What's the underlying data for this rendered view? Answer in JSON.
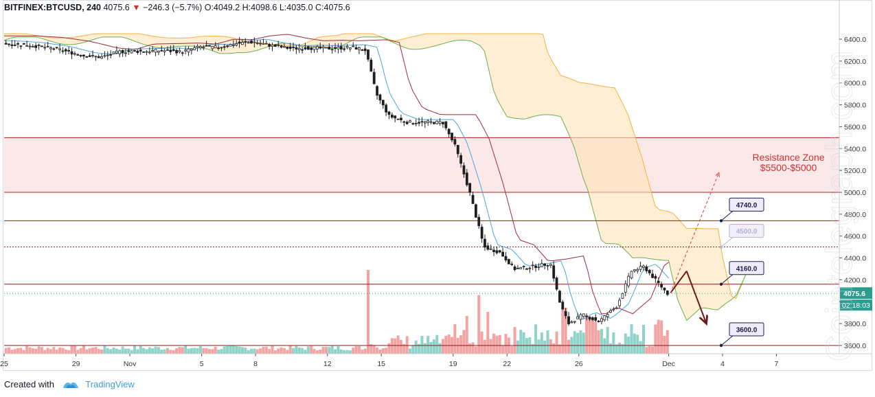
{
  "header": {
    "symbol": "BITFINEX:BTCUSD, 240",
    "last": "4075.6",
    "change": "−246.3 (−5.7%)",
    "open_label": "O:",
    "open": "4049.2",
    "high_label": "H:",
    "high": "4098.6",
    "low_label": "L:",
    "low": "4035.0",
    "close_label": "C:",
    "close": "4075.6"
  },
  "footer": {
    "created_with": "Created with",
    "brand": "TradingView"
  },
  "watermark": "Cointelegraph.com",
  "chart_data": {
    "type": "candlestick",
    "title": "BITFINEX:BTCUSD, 240",
    "ylim": [
      3500,
      6600
    ],
    "y_ticks": [
      3600,
      3800,
      4000,
      4200,
      4400,
      4600,
      4800,
      5000,
      5200,
      5400,
      5600,
      5800,
      6000,
      6200,
      6400
    ],
    "y_tick_labels": [
      "3600.0",
      "3800.0",
      "4000.0",
      "4200.0",
      "4400.0",
      "4600.0",
      "4800.0",
      "5000.0",
      "5200.0",
      "5400.0",
      "5600.0",
      "5800.0",
      "6000.0",
      "6200.0",
      "6400.0"
    ],
    "x_ticks": [
      {
        "label": "25",
        "day": 0
      },
      {
        "label": "29",
        "day": 4
      },
      {
        "label": "Nov",
        "day": 7
      },
      {
        "label": "5",
        "day": 11
      },
      {
        "label": "8",
        "day": 14
      },
      {
        "label": "12",
        "day": 18
      },
      {
        "label": "15",
        "day": 21
      },
      {
        "label": "19",
        "day": 25
      },
      {
        "label": "22",
        "day": 28
      },
      {
        "label": "26",
        "day": 32
      },
      {
        "label": "Dec",
        "day": 37
      },
      {
        "label": "4",
        "day": 40
      },
      {
        "label": "7",
        "day": 43
      }
    ],
    "x_range_days": [
      0,
      46.5
    ],
    "current_price": "4075.6",
    "countdown": "02:18:03",
    "resistance_zone": {
      "low": 5000,
      "high": 5500,
      "label_line1": "Resistance Zone",
      "label_line2": "$5500-$5000"
    },
    "levels": [
      {
        "value": 4740,
        "label": "4740.0",
        "style": "solid"
      },
      {
        "value": 4500,
        "label": "4500.0",
        "style": "dotted"
      },
      {
        "value": 4160,
        "label": "4160.0",
        "style": "solid"
      },
      {
        "value": 3600,
        "label": "3600.0",
        "style": "solid"
      }
    ],
    "price_path": [
      [
        0,
        6360
      ],
      [
        1.5,
        6345
      ],
      [
        3,
        6310
      ],
      [
        4.5,
        6250
      ],
      [
        5.5,
        6235
      ],
      [
        6.5,
        6285
      ],
      [
        8,
        6290
      ],
      [
        9,
        6295
      ],
      [
        10,
        6285
      ],
      [
        11,
        6330
      ],
      [
        12,
        6325
      ],
      [
        13,
        6360
      ],
      [
        14,
        6375
      ],
      [
        15,
        6340
      ],
      [
        16,
        6315
      ],
      [
        17,
        6320
      ],
      [
        18,
        6315
      ],
      [
        19.5,
        6325
      ],
      [
        20.2,
        6300
      ],
      [
        20.8,
        5900
      ],
      [
        21.5,
        5700
      ],
      [
        22.5,
        5640
      ],
      [
        24.5,
        5640
      ],
      [
        25.2,
        5420
      ],
      [
        26,
        5000
      ],
      [
        26.8,
        4500
      ],
      [
        27.7,
        4450
      ],
      [
        28.5,
        4300
      ],
      [
        29.5,
        4320
      ],
      [
        30.5,
        4350
      ],
      [
        31,
        4000
      ],
      [
        31.5,
        3800
      ],
      [
        32.3,
        3880
      ],
      [
        33.2,
        3820
      ],
      [
        34.2,
        3960
      ],
      [
        35,
        4280
      ],
      [
        35.7,
        4320
      ],
      [
        36.4,
        4190
      ],
      [
        37,
        4075.6
      ]
    ],
    "forecast": [
      {
        "from": [
          37.1,
          4080
        ],
        "to": [
          38,
          4280
        ],
        "style": "solid"
      },
      {
        "from": [
          38,
          4280
        ],
        "to": [
          39.1,
          3800
        ],
        "style": "solid"
      },
      {
        "from": [
          37.1,
          4080
        ],
        "to": [
          39.8,
          5180
        ],
        "style": "dashed"
      }
    ],
    "volume_spikes": [
      {
        "day": 20.3,
        "rel": 1.0
      },
      {
        "day": 25.8,
        "rel": 0.45
      },
      {
        "day": 26.4,
        "rel": 0.7
      },
      {
        "day": 26.9,
        "rel": 0.5
      },
      {
        "day": 31.2,
        "rel": 0.55
      },
      {
        "day": 32.5,
        "rel": 0.45
      }
    ]
  }
}
